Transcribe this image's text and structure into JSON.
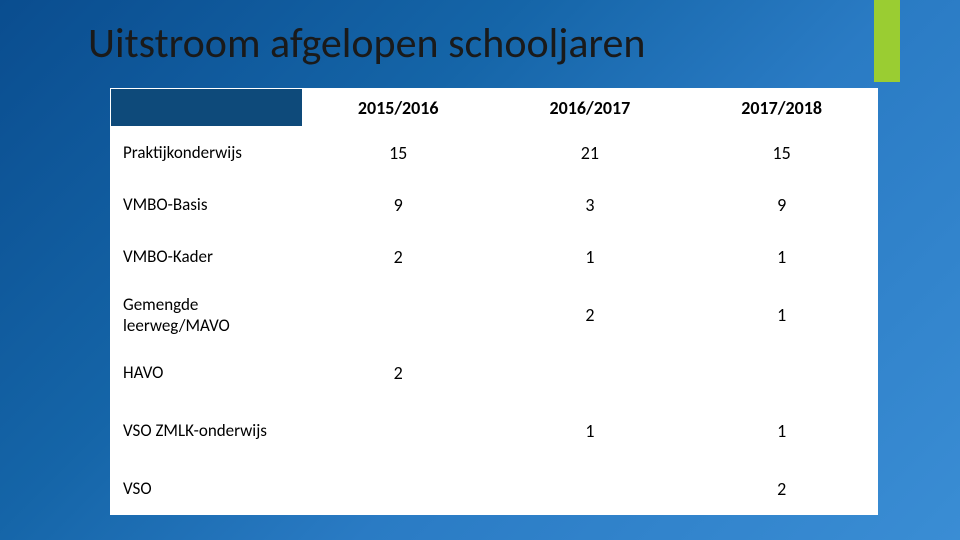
{
  "slide": {
    "title": "Uitstroom afgelopen schooljaren",
    "accent_color": "#9acd32",
    "background_gradient": [
      "#0a4d8f",
      "#1565a8",
      "#2a7bc4",
      "#3a8dd4"
    ]
  },
  "table": {
    "type": "table",
    "header_corner_bg": "#0e4a7a",
    "cell_bg": "#ffffff",
    "text_color": "#000000",
    "header_fontsize": 18,
    "cell_fontsize": 18,
    "columns": [
      "",
      "2015/2016",
      "2016/2017",
      "2017/2018"
    ],
    "rows": [
      [
        "Praktijkonderwijs",
        "15",
        "21",
        "15"
      ],
      [
        "VMBO-Basis",
        "9",
        "3",
        "9"
      ],
      [
        "VMBO-Kader",
        "2",
        "1",
        "1"
      ],
      [
        "Gemengde leerweg/MAVO",
        "",
        "2",
        "1"
      ],
      [
        "HAVO",
        "2",
        "",
        ""
      ],
      [
        "VSO ZMLK-onderwijs",
        "",
        "1",
        "1"
      ],
      [
        "VSO",
        "",
        "",
        "2"
      ]
    ]
  }
}
